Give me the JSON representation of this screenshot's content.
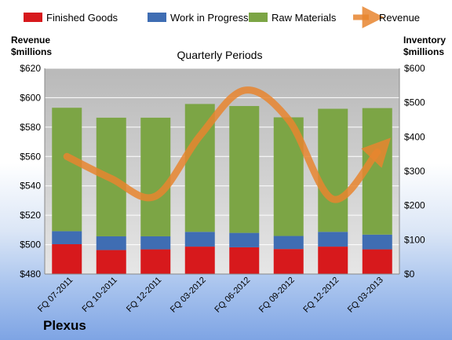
{
  "chart_data": {
    "type": "bar",
    "title": "Quarterly Periods",
    "brand": "Plexus",
    "categories": [
      "FQ 07-2011",
      "FQ 10-2011",
      "FQ 12-2011",
      "FQ 03-2012",
      "FQ 06-2012",
      "FQ 09-2012",
      "FQ 12-2012",
      "FQ 03-2013"
    ],
    "stacked": true,
    "series": [
      {
        "name": "Finished Goods",
        "axis": "right",
        "color": "#d7191c",
        "values": [
          87,
          70,
          72,
          80,
          78,
          73,
          80,
          72
        ]
      },
      {
        "name": "Work in Progress",
        "axis": "right",
        "color": "#3f6db3",
        "values": [
          38,
          40,
          38,
          43,
          42,
          38,
          43,
          43
        ]
      },
      {
        "name": "Raw Materials",
        "axis": "right",
        "color": "#7ca545",
        "values": [
          360,
          346,
          346,
          373,
          370,
          346,
          359,
          369
        ]
      }
    ],
    "line": {
      "name": "Revenue",
      "axis": "left",
      "color": "#e8852f",
      "values": [
        560,
        545,
        533,
        574,
        605,
        585,
        531,
        563
      ]
    },
    "left_axis": {
      "label_line1": "Revenue",
      "label_line2": "$millions",
      "min": 480,
      "max": 620,
      "step": 20,
      "prefix": "$"
    },
    "right_axis": {
      "label_line1": "Inventory",
      "label_line2": "$millions",
      "min": 0,
      "max": 600,
      "step": 100,
      "prefix": "$"
    },
    "grid": true,
    "legend_position": "top"
  }
}
